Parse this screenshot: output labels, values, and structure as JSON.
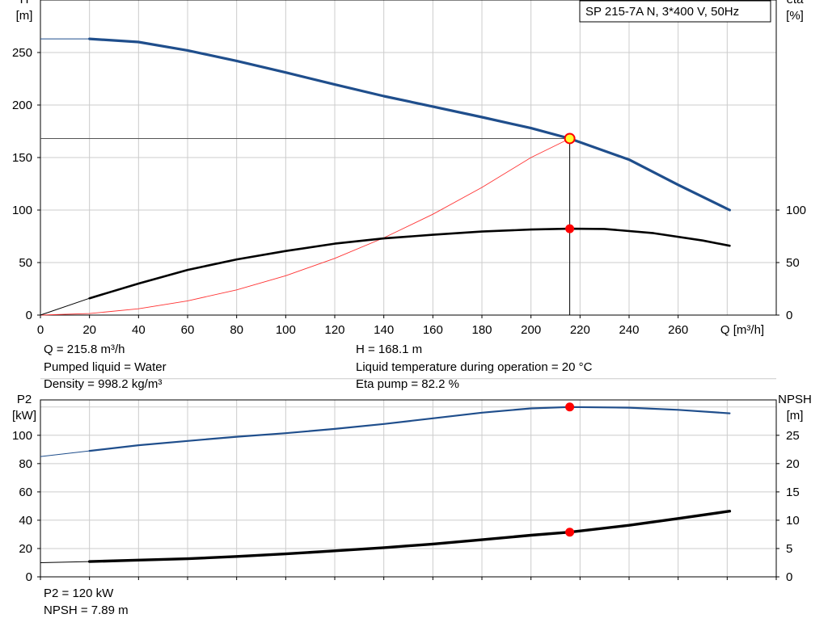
{
  "colors": {
    "head_curve": "#1f4e8c",
    "eta_curve": "#000000",
    "system_curve": "#ff3333",
    "p2_curve": "#1f4e8c",
    "npsh_curve": "#000000",
    "duty_marker": "#ff0000",
    "duty_marker_top": "#ffff33",
    "grid": "#cccccc"
  },
  "chart_data": [
    {
      "type": "line",
      "legend_box": "SP 215-7A N, 3*400 V, 50Hz",
      "xlabel": "Q [m³/h]",
      "ylabel_left": [
        "H",
        "[m]"
      ],
      "ylabel_right": [
        "eta",
        "[%]"
      ],
      "xlim": [
        0,
        300
      ],
      "ylim_left": [
        0,
        300
      ],
      "ylim_right": [
        0,
        300
      ],
      "x_ticks": [
        0,
        20,
        40,
        60,
        80,
        100,
        120,
        140,
        160,
        180,
        200,
        220,
        240,
        260
      ],
      "y_left_ticks": [
        0,
        50,
        100,
        150,
        200,
        250
      ],
      "y_right_ticks": [
        0,
        50,
        100
      ],
      "grid": true,
      "series": [
        {
          "name": "H",
          "axis": "left",
          "thin_start": [
            [
              0,
              263
            ],
            [
              20,
              263
            ]
          ],
          "x": [
            20,
            40,
            60,
            80,
            100,
            120,
            140,
            160,
            180,
            200,
            215.8,
            240,
            260,
            281
          ],
          "y": [
            263,
            260,
            252,
            242,
            231,
            219.5,
            208.5,
            198.5,
            188.5,
            178,
            168.1,
            148,
            124,
            100
          ]
        },
        {
          "name": "eta",
          "axis": "right",
          "thin_start": [
            [
              0,
              0
            ],
            [
              20,
              16
            ]
          ],
          "x": [
            20,
            40,
            60,
            80,
            100,
            120,
            140,
            160,
            180,
            200,
            215.8,
            230,
            250,
            270,
            281
          ],
          "y": [
            16,
            30,
            43,
            53,
            61,
            68,
            73,
            76.5,
            79.5,
            81.5,
            82.2,
            82,
            78,
            71,
            66
          ]
        },
        {
          "name": "system curve",
          "axis": "left",
          "x": [
            0,
            20,
            40,
            60,
            80,
            100,
            120,
            140,
            160,
            180,
            200,
            215.8
          ],
          "y": [
            0,
            1.5,
            6,
            13.5,
            24,
            37.5,
            54,
            73.5,
            96,
            121.5,
            150,
            168.1
          ]
        }
      ],
      "duty_point": {
        "q": 215.8,
        "h": 168.1,
        "eta": 82.2
      }
    },
    {
      "type": "line",
      "ylabel_left": [
        "P2",
        "[kW]"
      ],
      "ylabel_right": [
        "NPSH",
        "[m]"
      ],
      "xlim": [
        0,
        300
      ],
      "ylim_left": [
        0,
        125
      ],
      "ylim_right": [
        0,
        31.25
      ],
      "y_left_ticks": [
        0,
        20,
        40,
        60,
        80,
        100
      ],
      "y_right_ticks": [
        0,
        5,
        10,
        15,
        20,
        25
      ],
      "grid": true,
      "series": [
        {
          "name": "P2",
          "axis": "left",
          "thin_start": [
            [
              0,
              85
            ],
            [
              20,
              89
            ]
          ],
          "x": [
            20,
            40,
            60,
            80,
            100,
            120,
            140,
            160,
            180,
            200,
            215.8,
            240,
            260,
            281
          ],
          "y": [
            89,
            93,
            96,
            99,
            101.5,
            104.5,
            108,
            112,
            116,
            119,
            120,
            119.5,
            118,
            115.5
          ]
        },
        {
          "name": "NPSH",
          "axis": "right",
          "thin_start": [
            [
              0,
              2.5
            ],
            [
              20,
              2.7
            ]
          ],
          "x": [
            20,
            40,
            60,
            80,
            100,
            120,
            140,
            160,
            180,
            200,
            215.8,
            240,
            260,
            281
          ],
          "y": [
            2.7,
            2.95,
            3.2,
            3.6,
            4.05,
            4.6,
            5.15,
            5.8,
            6.55,
            7.35,
            7.89,
            9.1,
            10.3,
            11.6
          ]
        }
      ],
      "duty_point": {
        "q": 215.8,
        "p2": 120,
        "npsh": 7.89
      }
    }
  ],
  "info_top": [
    "Q = 215.8 m³/h",
    "Pumped liquid = Water",
    "Density = 998.2 kg/m³",
    "H = 168.1 m",
    "Liquid temperature during operation = 20 °C",
    "Eta pump = 82.2 %"
  ],
  "info_bottom": [
    "P2 = 120 kW",
    "NPSH = 7.89 m"
  ]
}
